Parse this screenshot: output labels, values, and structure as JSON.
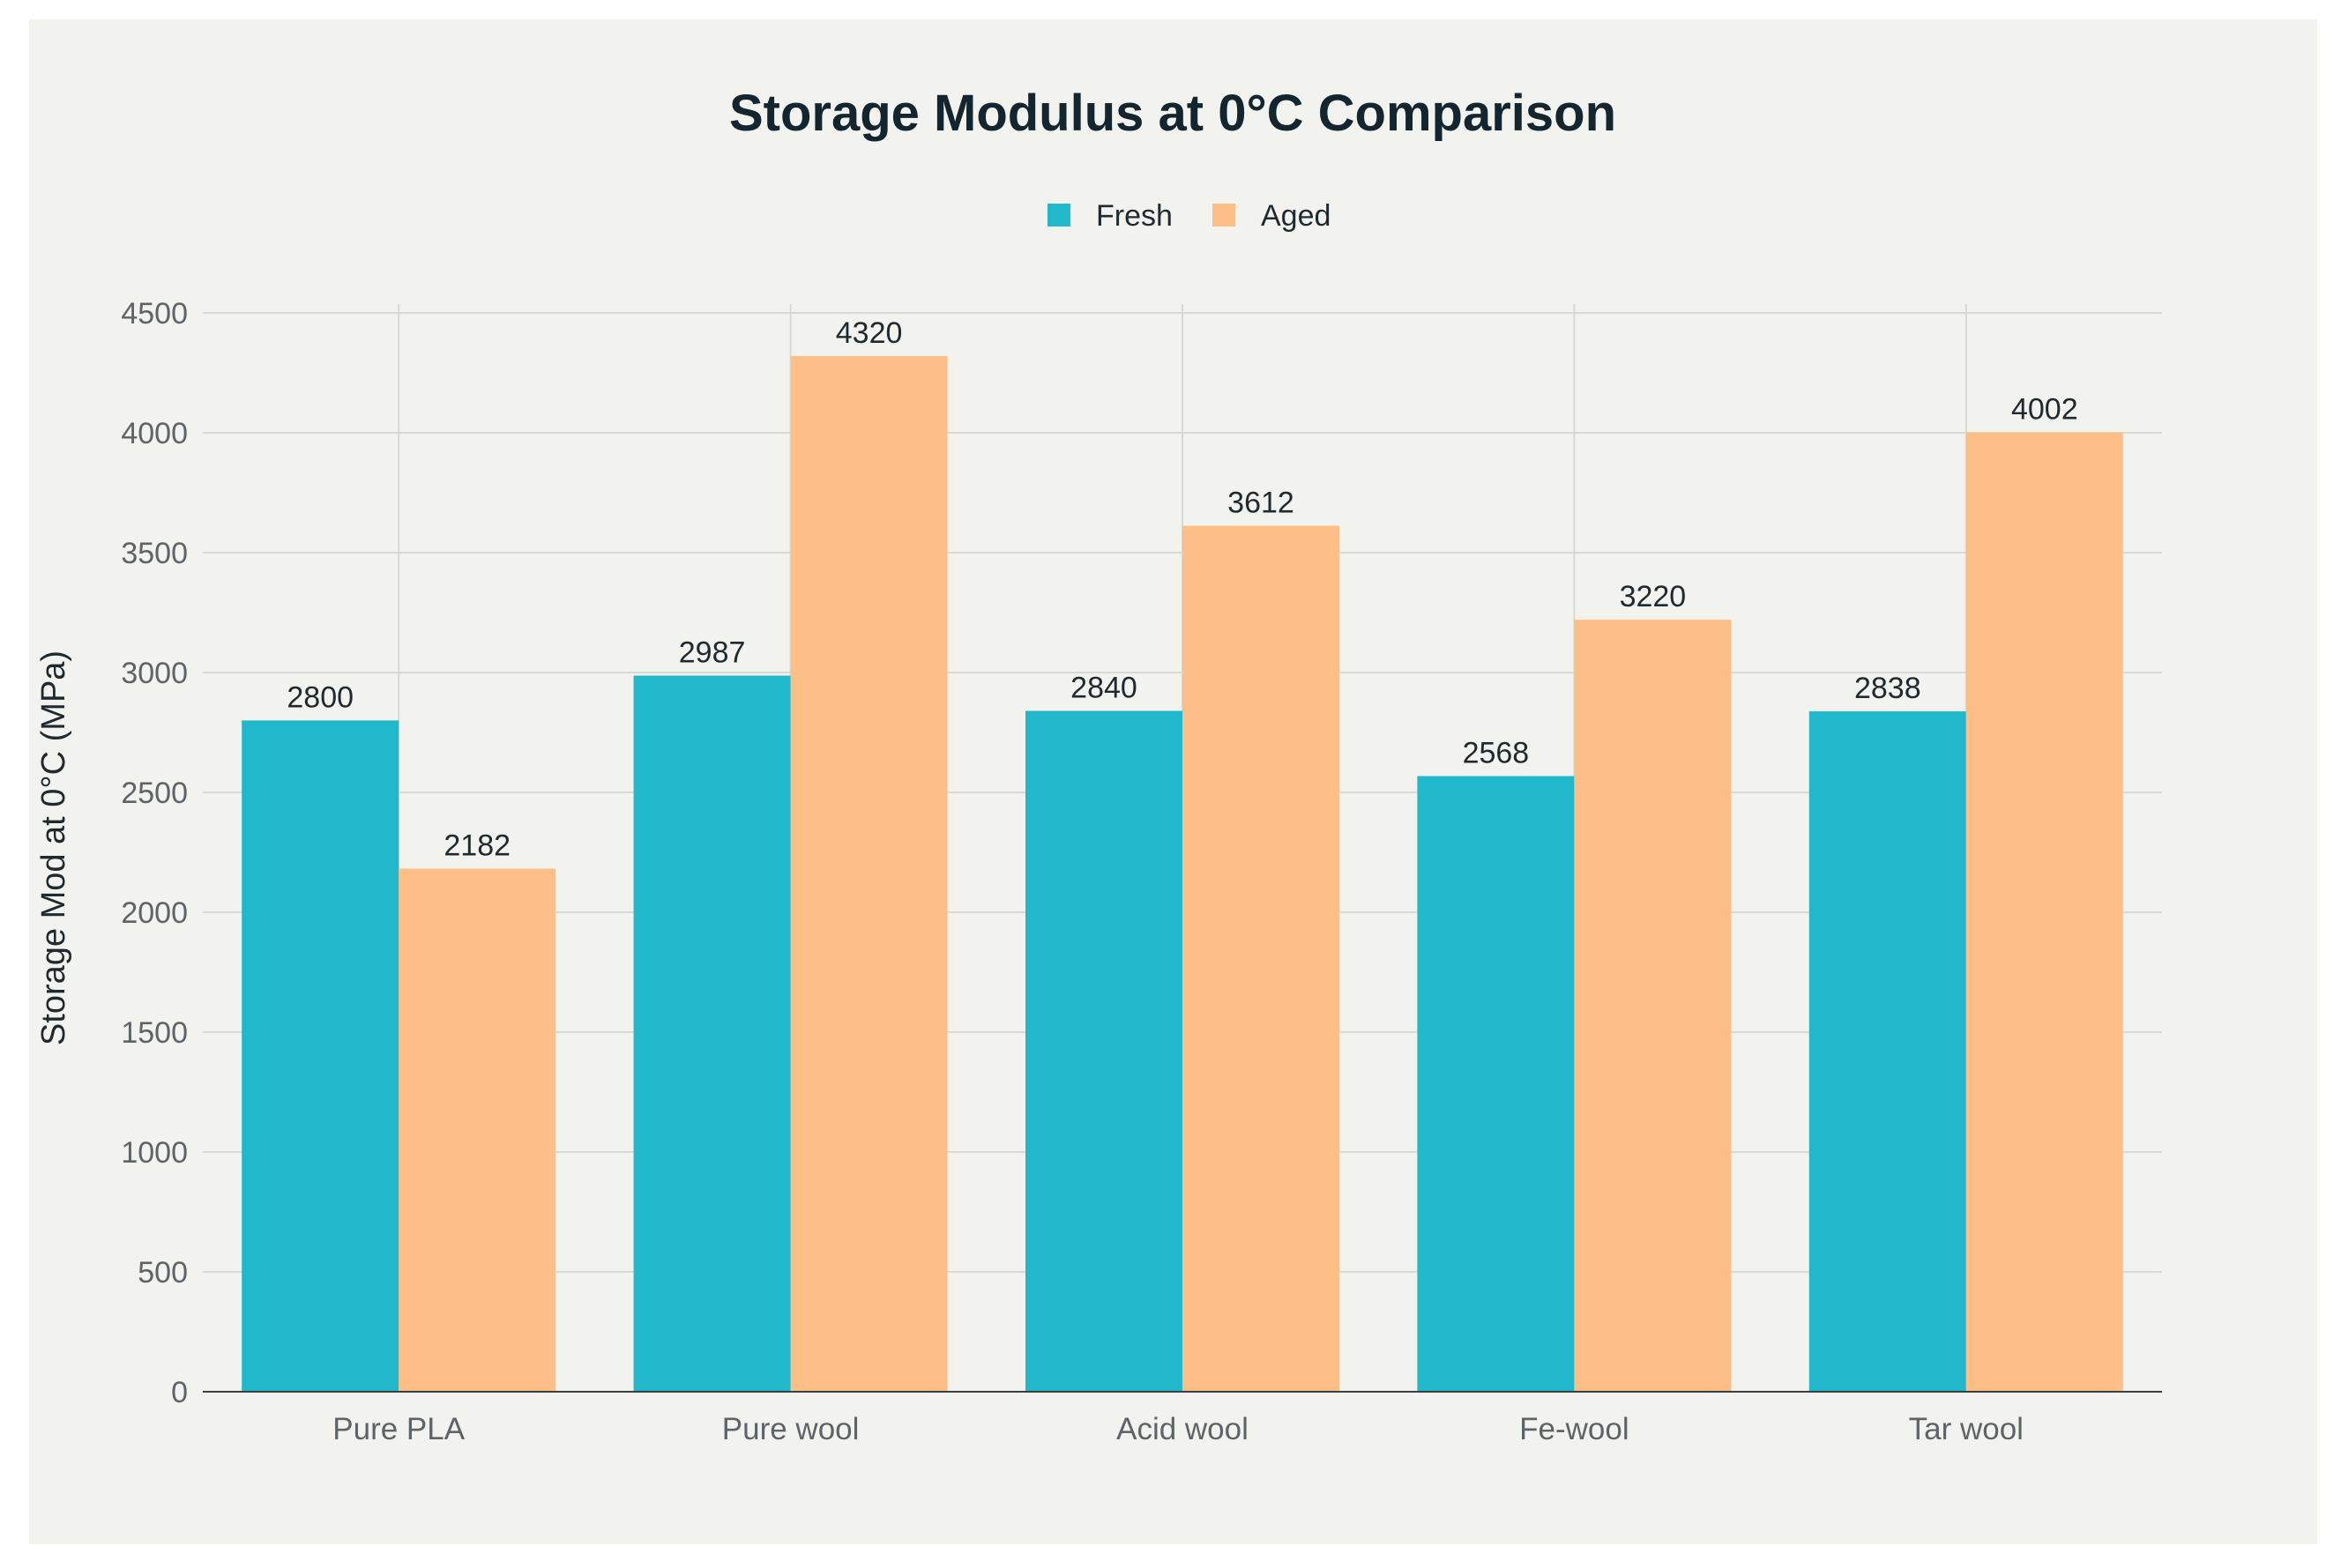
{
  "chart_data": {
    "type": "bar",
    "title": "Storage Modulus at 0°C Comparison",
    "xlabel": "",
    "ylabel": "Storage Mod at 0°C (MPa)",
    "ylim": [
      0,
      4500
    ],
    "yticks": [
      0,
      500,
      1000,
      1500,
      2000,
      2500,
      3000,
      3500,
      4000,
      4500
    ],
    "grid": true,
    "legend_position": "top-center",
    "categories": [
      "Pure PLA",
      "Pure wool",
      "Acid wool",
      "Fe-wool",
      "Tar wool"
    ],
    "series": [
      {
        "name": "Fresh",
        "color": "#21b8cc",
        "values": [
          2800,
          2987,
          2840,
          2568,
          2838
        ]
      },
      {
        "name": "Aged",
        "color": "#fdbe87",
        "values": [
          2182,
          4320,
          3612,
          3220,
          4002
        ]
      }
    ]
  }
}
